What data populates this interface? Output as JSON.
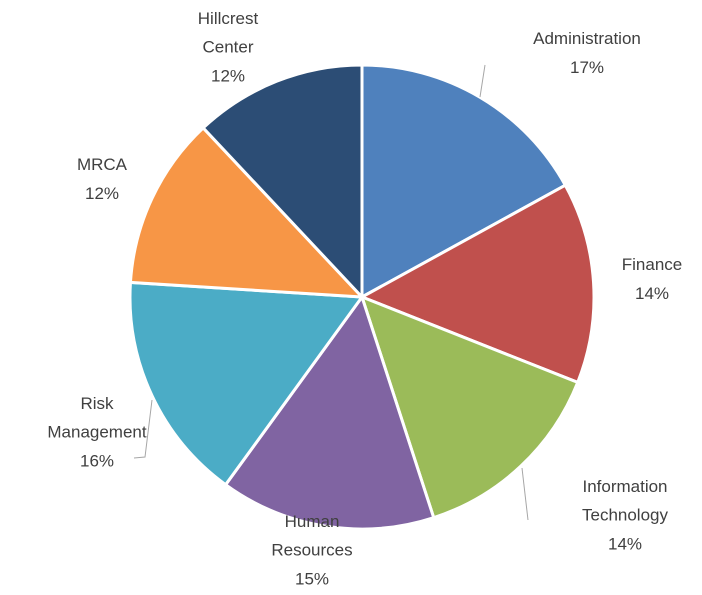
{
  "chart_data": {
    "type": "pie",
    "categories": [
      "Administration",
      "Finance",
      "Information Technology",
      "Human Resources",
      "Risk Management",
      "MRCA",
      "Hillcrest Center"
    ],
    "values": [
      17,
      14,
      14,
      15,
      16,
      12,
      12
    ],
    "value_labels": [
      "17%",
      "14%",
      "14%",
      "15%",
      "16%",
      "12%",
      "12%"
    ],
    "colors": [
      "#4f81bd",
      "#c0504d",
      "#9bbb59",
      "#8064a2",
      "#4bacc6",
      "#f79646",
      "#2c4d75"
    ]
  }
}
